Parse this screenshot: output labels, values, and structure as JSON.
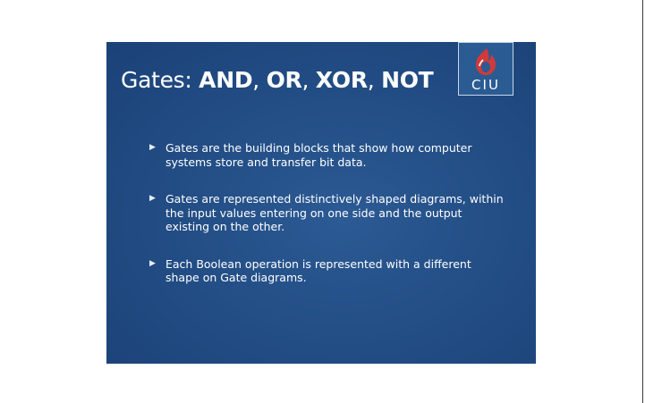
{
  "slide": {
    "title_prefix": "Gates: ",
    "title_bold": "AND",
    "title_sep1": ", ",
    "title_bold2": "OR",
    "title_sep2": ", ",
    "title_bold3": "XOR",
    "title_sep3": ", ",
    "title_bold4": "NOT",
    "logo_text": "CIU",
    "bullet_marker": "▶",
    "bullets": [
      "Gates are the building blocks that show how computer systems store and transfer bit data.",
      "Gates are represented distinctively shaped diagrams, within the input values entering on one side and the output existing on the other.",
      "Each Boolean operation is represented with a different shape on Gate diagrams."
    ]
  },
  "colors": {
    "slide_background": "#234e86",
    "logo_flame": "#d13a3a",
    "text": "#ffffff"
  }
}
